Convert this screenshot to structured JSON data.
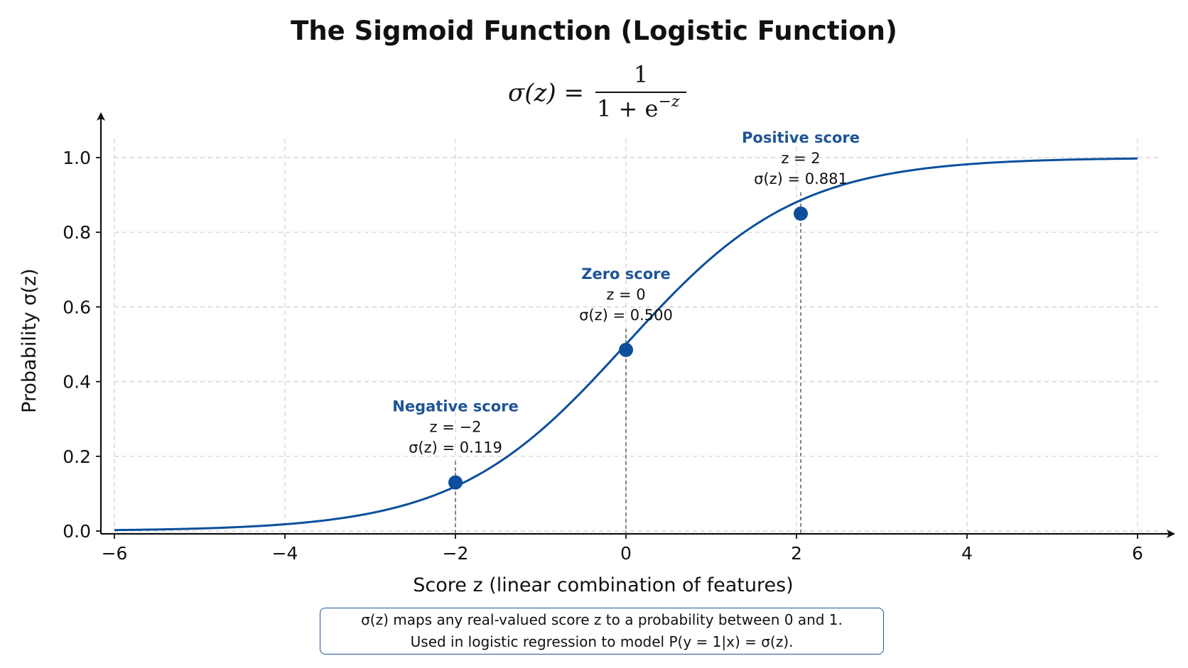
{
  "chart_data": {
    "type": "line",
    "title": "The Sigmoid Function (Logistic Function)",
    "formula": {
      "lhs": "σ(z) =",
      "numerator": "1",
      "denominator": "1 + e",
      "exponent": "−z"
    },
    "xlabel": "Score z (linear combination of features)",
    "ylabel": "Probability σ(z)",
    "xlim": [
      -6,
      6
    ],
    "ylim": [
      0,
      1.05
    ],
    "x_ticks": [
      -6,
      -4,
      -2,
      0,
      2,
      4,
      6
    ],
    "x_tick_labels": [
      "−6",
      "−4",
      "−2",
      "0",
      "2",
      "4",
      "6"
    ],
    "y_ticks": [
      0,
      0.2,
      0.4,
      0.6,
      0.8,
      1.0
    ],
    "y_tick_labels": [
      "0.0",
      "0.2",
      "0.4",
      "0.6",
      "0.8",
      "1.0"
    ],
    "grid": true,
    "series": [
      {
        "function": "1/(1+exp(-z))",
        "x_range": [
          -6,
          6
        ],
        "color": "#0b4f9c"
      }
    ],
    "points": [
      {
        "x": -2,
        "y": 0.13,
        "label": "Negative score",
        "z_text": "z = −2",
        "value_text": "σ(z) = 0.119"
      },
      {
        "x": 0,
        "y": 0.485,
        "label": "Zero score",
        "z_text": "z = 0",
        "value_text": "σ(z) = 0.500"
      },
      {
        "x": 2.05,
        "y": 0.85,
        "label": "Positive score",
        "z_text": "z = 2",
        "value_text": "σ(z) = 0.881"
      }
    ],
    "colors": {
      "curve": "#0b4f9c",
      "annotation_title": "#1f5496",
      "box_border": "#1f5496"
    },
    "note": {
      "line1": "σ(z) maps any real-valued score z to a probability between 0 and 1.",
      "line2": "Used in logistic regression to model P(y = 1|x) = σ(z)."
    }
  }
}
